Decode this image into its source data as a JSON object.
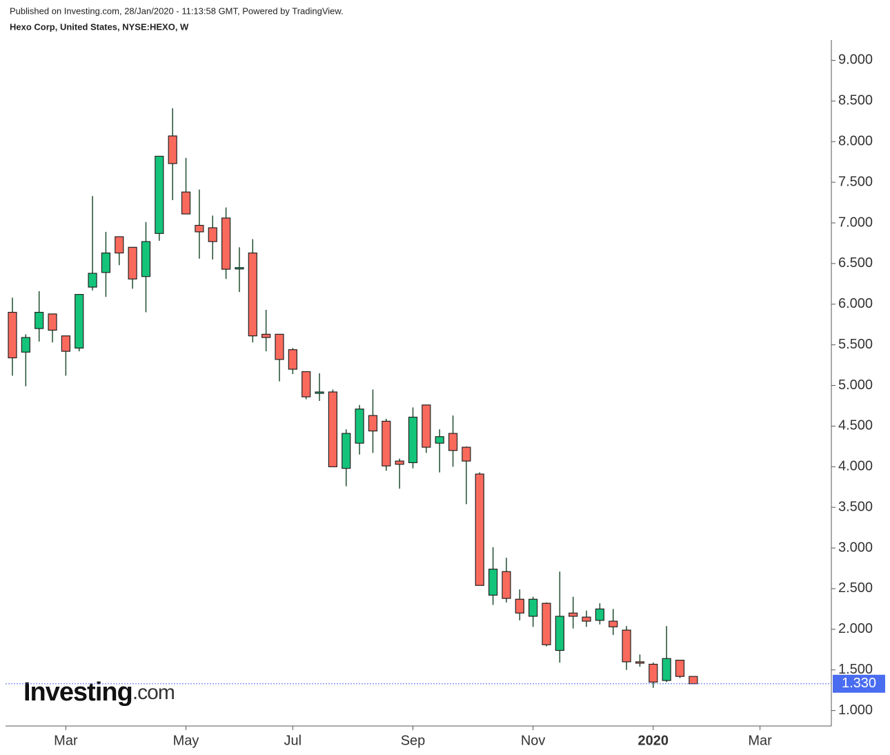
{
  "header": {
    "published": "Published on Investing.com, 28/Jan/2020 - 11:13:58 GMT, Powered by TradingView.",
    "symbol": "Hexo Corp, United States, NYSE:HEXO, W"
  },
  "logo": [
    "Investing",
    ".com"
  ],
  "chart_data": {
    "type": "candlestick",
    "up_color": "#14c47a",
    "down_color": "#f96a5d",
    "wick_color": "#1e4d2e",
    "categories": [
      null,
      null,
      null,
      null,
      null,
      null,
      null,
      null,
      null,
      null,
      null,
      null,
      null,
      null,
      null,
      null,
      null,
      null,
      null,
      null,
      null,
      null,
      null,
      null,
      null,
      null,
      null,
      null,
      null,
      null,
      null,
      null,
      null,
      null,
      null,
      null,
      null,
      null,
      null,
      null,
      null,
      null,
      null,
      null,
      null,
      null,
      null,
      null,
      null,
      null,
      null,
      null
    ],
    "open": [
      5.9,
      5.41,
      5.7,
      5.88,
      5.61,
      5.46,
      6.21,
      6.39,
      6.83,
      6.7,
      6.34,
      6.87,
      8.07,
      7.38,
      6.97,
      6.94,
      7.06,
      6.44,
      6.63,
      5.63,
      5.63,
      5.44,
      5.17,
      4.91,
      4.92,
      3.98,
      4.29,
      4.63,
      4.56,
      4.07,
      4.05,
      4.76,
      4.29,
      4.41,
      4.24,
      3.91,
      2.42,
      2.71,
      2.37,
      2.16,
      2.32,
      1.74,
      2.2,
      2.15,
      2.11,
      2.1,
      1.99,
      1.6,
      1.57,
      1.37,
      1.62,
      1.42
    ],
    "high": [
      6.08,
      5.63,
      6.16,
      5.88,
      5.61,
      6.12,
      7.33,
      6.89,
      6.83,
      6.7,
      7.01,
      7.82,
      8.41,
      7.8,
      7.41,
      7.09,
      7.19,
      6.7,
      6.8,
      5.93,
      5.63,
      5.46,
      5.17,
      5.15,
      4.95,
      4.46,
      4.76,
      4.95,
      4.59,
      4.1,
      4.73,
      4.76,
      4.46,
      4.63,
      4.25,
      3.93,
      3.01,
      2.88,
      2.49,
      2.4,
      2.33,
      2.71,
      2.4,
      2.23,
      2.32,
      2.25,
      2.04,
      1.69,
      1.59,
      2.04,
      1.62,
      1.42
    ],
    "low": [
      5.12,
      4.99,
      5.54,
      5.53,
      5.12,
      5.42,
      6.17,
      6.09,
      6.48,
      6.19,
      5.9,
      6.78,
      7.28,
      7.11,
      6.56,
      6.55,
      6.31,
      6.15,
      5.53,
      5.42,
      5.05,
      5.14,
      4.83,
      4.81,
      4.0,
      3.76,
      4.15,
      4.17,
      3.95,
      3.73,
      3.98,
      4.17,
      3.93,
      4.0,
      3.54,
      2.54,
      2.3,
      2.33,
      2.11,
      2.03,
      1.79,
      1.59,
      2.01,
      2.03,
      2.06,
      1.93,
      1.5,
      1.54,
      1.28,
      1.35,
      1.4,
      1.33
    ],
    "close": [
      5.34,
      5.59,
      5.9,
      5.68,
      5.42,
      6.12,
      6.38,
      6.63,
      6.63,
      6.31,
      6.77,
      7.82,
      7.73,
      7.11,
      6.89,
      6.77,
      6.43,
      6.45,
      5.61,
      5.59,
      5.32,
      5.2,
      4.86,
      4.92,
      4.0,
      4.41,
      4.71,
      4.44,
      4.01,
      4.03,
      4.61,
      4.24,
      4.37,
      4.2,
      4.07,
      2.54,
      2.74,
      2.38,
      2.2,
      2.37,
      1.81,
      2.16,
      2.16,
      2.1,
      2.25,
      2.03,
      1.6,
      1.59,
      1.35,
      1.64,
      1.42,
      1.33
    ],
    "ylim": [
      0.81,
      9.25
    ],
    "yticks": [
      {
        "value": 1,
        "label": "1.000"
      },
      {
        "value": 1.5,
        "label": "1.500"
      },
      {
        "value": 2,
        "label": "2.000"
      },
      {
        "value": 2.5,
        "label": "2.500"
      },
      {
        "value": 3,
        "label": "3.000"
      },
      {
        "value": 3.5,
        "label": "3.500"
      },
      {
        "value": 4,
        "label": "4.000"
      },
      {
        "value": 4.5,
        "label": "4.500"
      },
      {
        "value": 5,
        "label": "5.000"
      },
      {
        "value": 5.5,
        "label": "5.500"
      },
      {
        "value": 6,
        "label": "6.000"
      },
      {
        "value": 6.5,
        "label": "6.500"
      },
      {
        "value": 7,
        "label": "7.000"
      },
      {
        "value": 7.5,
        "label": "7.500"
      },
      {
        "value": 8,
        "label": "8.000"
      },
      {
        "value": 8.5,
        "label": "8.500"
      },
      {
        "value": 9,
        "label": "9.000"
      }
    ],
    "xticks": [
      {
        "value": 4,
        "label": "Mar"
      },
      {
        "value": 13,
        "label": "May"
      },
      {
        "value": 21,
        "label": "Jul"
      },
      {
        "value": 30,
        "label": "Sep"
      },
      {
        "value": 39,
        "label": "Nov"
      },
      {
        "value": 48,
        "label": "2020",
        "bold": true
      },
      {
        "value": 56,
        "label": "Mar"
      }
    ],
    "last_price": {
      "value": 1.33,
      "label": "1.330",
      "color": "#4a6cf0"
    }
  }
}
